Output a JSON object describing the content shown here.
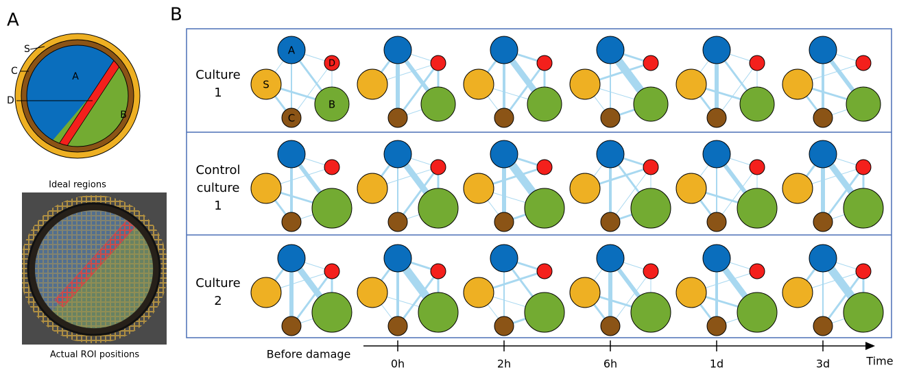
{
  "panel_a": {
    "letter": "A",
    "region_labels": [
      "S",
      "C",
      "D"
    ],
    "areas": [
      "A",
      "B"
    ],
    "caption_ideal": "Ideal regions",
    "caption_actual": "Actual ROI positions"
  },
  "panel_b": {
    "letter": "B",
    "rows": [
      {
        "label": [
          "Culture",
          "1"
        ]
      },
      {
        "label": [
          "Control",
          "culture",
          "1"
        ]
      },
      {
        "label": [
          "Culture",
          "2"
        ]
      }
    ],
    "node_labels": [
      "A",
      "D",
      "S",
      "B",
      "C"
    ],
    "timeline": {
      "start": "Before damage",
      "ticks": [
        "0h",
        "2h",
        "6h",
        "1d",
        "3d"
      ],
      "axis_label": "Time"
    }
  }
}
